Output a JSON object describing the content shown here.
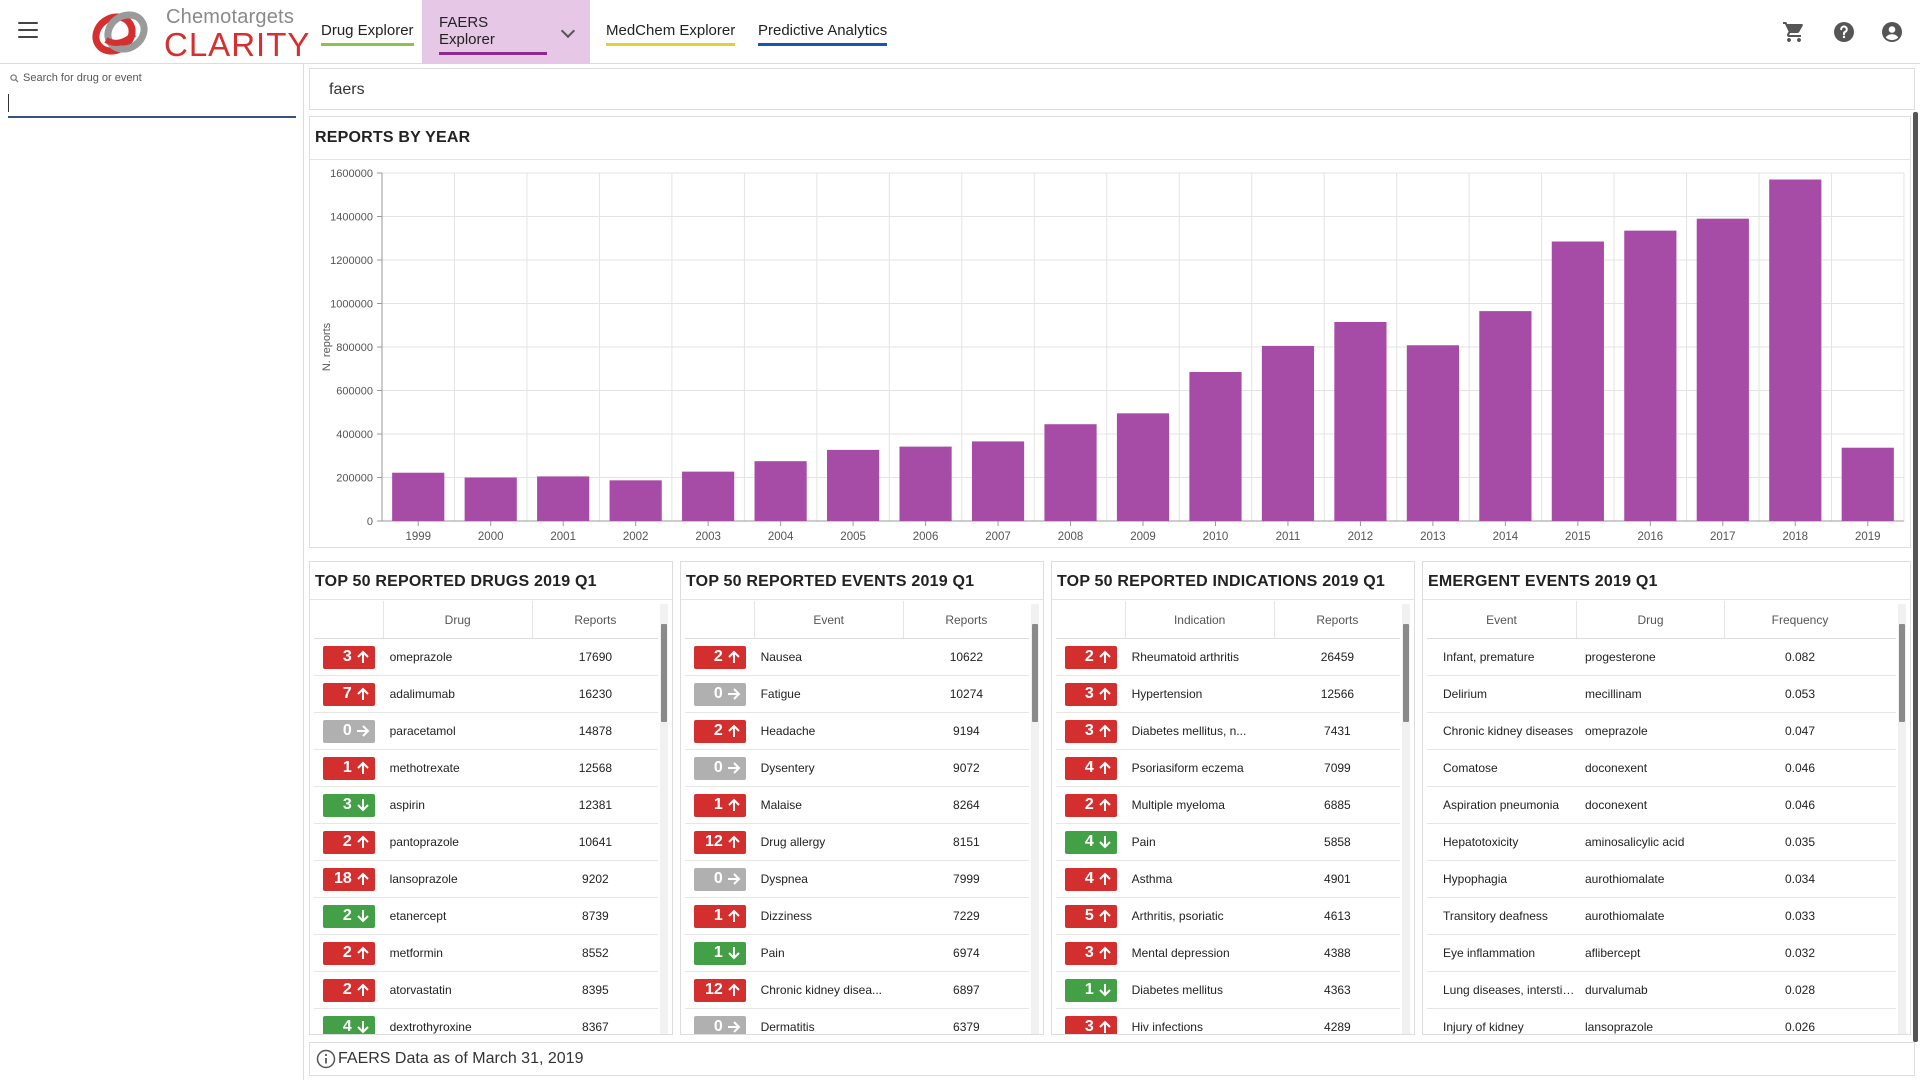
{
  "header": {
    "company": "Chemotargets",
    "product": "CLARITY",
    "nav": [
      {
        "label": "Drug Explorer"
      },
      {
        "label": "FAERS Explorer"
      },
      {
        "label": "MedChem Explorer"
      },
      {
        "label": "Predictive Analytics"
      }
    ],
    "icons": [
      "menu-icon",
      "cart-icon",
      "help-icon",
      "account-icon"
    ]
  },
  "sidebar": {
    "search_label": "Search for drug or event",
    "search_value": ""
  },
  "breadcrumb": "faers",
  "reports_by_year": {
    "title": "REPORTS BY YEAR",
    "color": "#a64ca6"
  },
  "chart_data": {
    "type": "bar",
    "title": "REPORTS BY YEAR",
    "xlabel": "",
    "ylabel": "N. reports",
    "ylim": [
      0,
      1600000
    ],
    "yticks": [
      0,
      200000,
      400000,
      600000,
      800000,
      1000000,
      1200000,
      1400000,
      1600000
    ],
    "grid": true,
    "categories": [
      "1999",
      "2000",
      "2001",
      "2002",
      "2003",
      "2004",
      "2005",
      "2006",
      "2007",
      "2008",
      "2009",
      "2010",
      "2011",
      "2012",
      "2013",
      "2014",
      "2015",
      "2016",
      "2017",
      "2018",
      "2019"
    ],
    "values": [
      222000,
      200000,
      205000,
      187000,
      227000,
      275000,
      327000,
      342000,
      366000,
      445000,
      495000,
      685000,
      805000,
      915000,
      808000,
      965000,
      1285000,
      1335000,
      1390000,
      1570000,
      337000
    ]
  },
  "tables": {
    "drugs": {
      "title": "TOP 50 REPORTED DRUGS 2019 Q1",
      "headers": [
        "",
        "Drug",
        "Reports"
      ],
      "rows": [
        {
          "change": "3",
          "dir": "up",
          "name": "omeprazole",
          "reports": "17690"
        },
        {
          "change": "7",
          "dir": "up",
          "name": "adalimumab",
          "reports": "16230"
        },
        {
          "change": "0",
          "dir": "same",
          "name": "paracetamol",
          "reports": "14878"
        },
        {
          "change": "1",
          "dir": "up",
          "name": "methotrexate",
          "reports": "12568"
        },
        {
          "change": "3",
          "dir": "down",
          "name": "aspirin",
          "reports": "12381"
        },
        {
          "change": "2",
          "dir": "up",
          "name": "pantoprazole",
          "reports": "10641"
        },
        {
          "change": "18",
          "dir": "up",
          "name": "lansoprazole",
          "reports": "9202"
        },
        {
          "change": "2",
          "dir": "down",
          "name": "etanercept",
          "reports": "8739"
        },
        {
          "change": "2",
          "dir": "up",
          "name": "metformin",
          "reports": "8552"
        },
        {
          "change": "2",
          "dir": "up",
          "name": "atorvastatin",
          "reports": "8395"
        },
        {
          "change": "4",
          "dir": "down",
          "name": "dextrothyroxine",
          "reports": "8367"
        }
      ]
    },
    "events": {
      "title": "TOP 50 REPORTED EVENTS 2019 Q1",
      "headers": [
        "",
        "Event",
        "Reports"
      ],
      "rows": [
        {
          "change": "2",
          "dir": "up",
          "name": "Nausea",
          "reports": "10622"
        },
        {
          "change": "0",
          "dir": "same",
          "name": "Fatigue",
          "reports": "10274"
        },
        {
          "change": "2",
          "dir": "up",
          "name": "Headache",
          "reports": "9194"
        },
        {
          "change": "0",
          "dir": "same",
          "name": "Dysentery",
          "reports": "9072"
        },
        {
          "change": "1",
          "dir": "up",
          "name": "Malaise",
          "reports": "8264"
        },
        {
          "change": "12",
          "dir": "up",
          "name": "Drug allergy",
          "reports": "8151"
        },
        {
          "change": "0",
          "dir": "same",
          "name": "Dyspnea",
          "reports": "7999"
        },
        {
          "change": "1",
          "dir": "up",
          "name": "Dizziness",
          "reports": "7229"
        },
        {
          "change": "1",
          "dir": "down",
          "name": "Pain",
          "reports": "6974"
        },
        {
          "change": "12",
          "dir": "up",
          "name": "Chronic kidney disea...",
          "reports": "6897"
        },
        {
          "change": "0",
          "dir": "same",
          "name": "Dermatitis",
          "reports": "6379"
        }
      ]
    },
    "indications": {
      "title": "TOP 50 REPORTED INDICATIONS 2019 Q1",
      "headers": [
        "",
        "Indication",
        "Reports"
      ],
      "rows": [
        {
          "change": "2",
          "dir": "up",
          "name": "Rheumatoid arthritis",
          "reports": "26459"
        },
        {
          "change": "3",
          "dir": "up",
          "name": "Hypertension",
          "reports": "12566"
        },
        {
          "change": "3",
          "dir": "up",
          "name": "Diabetes mellitus, n...",
          "reports": "7431"
        },
        {
          "change": "4",
          "dir": "up",
          "name": "Psoriasiform eczema",
          "reports": "7099"
        },
        {
          "change": "2",
          "dir": "up",
          "name": "Multiple myeloma",
          "reports": "6885"
        },
        {
          "change": "4",
          "dir": "down",
          "name": "Pain",
          "reports": "5858"
        },
        {
          "change": "4",
          "dir": "up",
          "name": "Asthma",
          "reports": "4901"
        },
        {
          "change": "5",
          "dir": "up",
          "name": "Arthritis, psoriatic",
          "reports": "4613"
        },
        {
          "change": "3",
          "dir": "up",
          "name": "Mental depression",
          "reports": "4388"
        },
        {
          "change": "1",
          "dir": "down",
          "name": "Diabetes mellitus",
          "reports": "4363"
        },
        {
          "change": "3",
          "dir": "up",
          "name": "Hiv infections",
          "reports": "4289"
        }
      ]
    },
    "emergent": {
      "title": "EMERGENT EVENTS 2019 Q1",
      "headers": [
        "Event",
        "Drug",
        "Frequency"
      ],
      "rows": [
        {
          "event": "Infant, premature",
          "drug": "progesterone",
          "freq": "0.082"
        },
        {
          "event": "Delirium",
          "drug": "mecillinam",
          "freq": "0.053"
        },
        {
          "event": "Chronic kidney diseases",
          "drug": "omeprazole",
          "freq": "0.047"
        },
        {
          "event": "Comatose",
          "drug": "doconexent",
          "freq": "0.046"
        },
        {
          "event": "Aspiration pneumonia",
          "drug": "doconexent",
          "freq": "0.046"
        },
        {
          "event": "Hepatotoxicity",
          "drug": "aminosalicylic acid",
          "freq": "0.035"
        },
        {
          "event": "Hypophagia",
          "drug": "aurothiomalate",
          "freq": "0.034"
        },
        {
          "event": "Transitory deafness",
          "drug": "aurothiomalate",
          "freq": "0.033"
        },
        {
          "event": "Eye inflammation",
          "drug": "aflibercept",
          "freq": "0.032"
        },
        {
          "event": "Lung diseases, interstiti...",
          "drug": "durvalumab",
          "freq": "0.028"
        },
        {
          "event": "Injury of kidney",
          "drug": "lansoprazole",
          "freq": "0.026"
        }
      ]
    }
  },
  "footer": {
    "text": "FAERS Data as of March 31, 2019"
  },
  "colors": {
    "bar": "#a64ca6",
    "badge_up": "#d32f2f",
    "badge_down": "#43a047",
    "badge_same": "#b0b0b0",
    "faers_tab_bg": "#e6c8e6"
  }
}
